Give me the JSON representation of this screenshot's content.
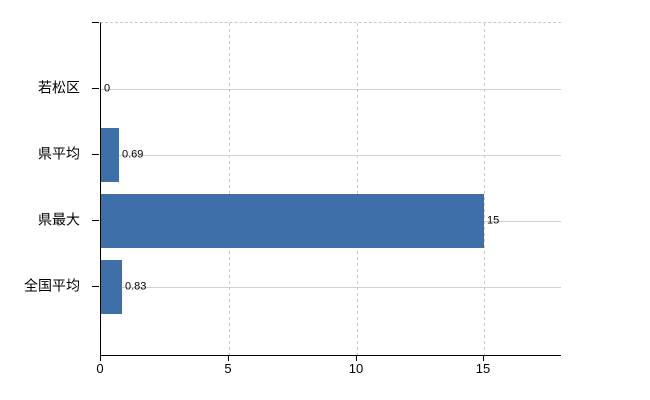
{
  "chart_data": {
    "type": "bar",
    "orientation": "horizontal",
    "title": "",
    "xlabel": "",
    "ylabel": "",
    "categories": [
      "若松区",
      "県平均",
      "県最大",
      "全国平均"
    ],
    "values": [
      0,
      0.69,
      15,
      0.83
    ],
    "value_labels": [
      "0",
      "0.69",
      "15",
      "0.83"
    ],
    "xlim": [
      0,
      18
    ],
    "xticks": [
      0,
      5,
      10,
      15
    ],
    "xtick_labels": [
      "0",
      "5",
      "10",
      "15"
    ],
    "grid": true,
    "legend": null,
    "bar_color": "#3f6fa9"
  },
  "colors": {
    "bar": "#3f6fa9",
    "gridline_horizontal": "#ccd3cc",
    "gridline_vertical": "#cccccc",
    "axis": "#000000",
    "text": "#000000",
    "background": "#ffffff"
  }
}
